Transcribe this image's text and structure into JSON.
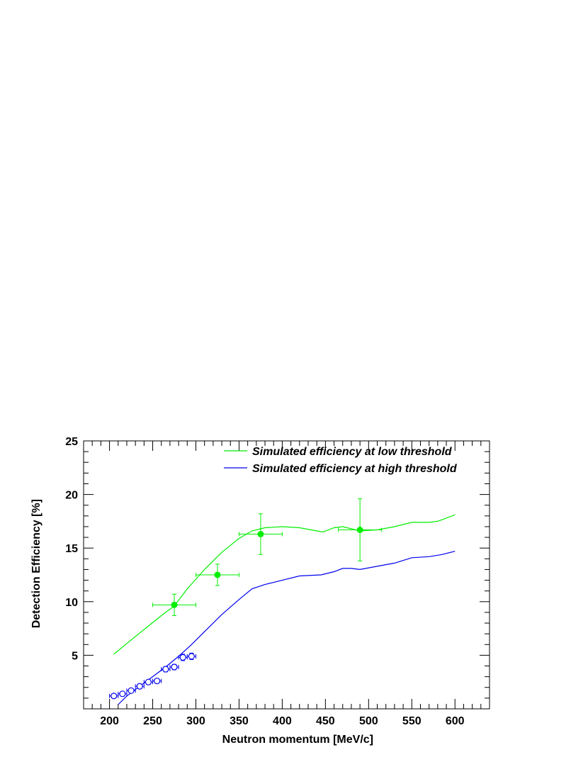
{
  "chart_data": {
    "type": "line",
    "title": "",
    "xlabel": "Neutron momentum  [MeV/c]",
    "ylabel": "Detection Efficiency  [%]",
    "xlim": [
      170,
      640
    ],
    "ylim": [
      0,
      25
    ],
    "xticks": [
      200,
      250,
      300,
      350,
      400,
      450,
      500,
      550,
      600
    ],
    "yticks": [
      5,
      10,
      15,
      20,
      25
    ],
    "legend_position": "top-right",
    "grid": false,
    "series": [
      {
        "name": "Simulated efficiency at low threshold",
        "kind": "line",
        "color": "#00ee00",
        "x": [
          205,
          220,
          240,
          260,
          275,
          290,
          310,
          330,
          350,
          365,
          380,
          400,
          420,
          440,
          447,
          460,
          470,
          480,
          490,
          510,
          530,
          550,
          560,
          570,
          580,
          590,
          600
        ],
        "y": [
          5.1,
          6.1,
          7.4,
          8.7,
          9.6,
          11.2,
          13.0,
          14.6,
          15.9,
          16.6,
          16.9,
          17.0,
          16.9,
          16.6,
          16.5,
          16.9,
          17.0,
          16.8,
          16.6,
          16.7,
          17.0,
          17.4,
          17.4,
          17.4,
          17.5,
          17.8,
          18.1
        ]
      },
      {
        "name": "Simulated efficiency at high threshold",
        "kind": "line",
        "color": "#0000ee",
        "x": [
          210,
          220,
          235,
          250,
          265,
          280,
          295,
          310,
          330,
          350,
          365,
          380,
          400,
          420,
          445,
          460,
          470,
          480,
          490,
          510,
          530,
          550,
          570,
          585,
          600
        ],
        "y": [
          0.4,
          1.2,
          2.1,
          3.0,
          3.9,
          4.9,
          6.0,
          7.2,
          8.8,
          10.2,
          11.2,
          11.6,
          12.0,
          12.4,
          12.5,
          12.8,
          13.1,
          13.1,
          13.0,
          13.3,
          13.6,
          14.1,
          14.2,
          14.4,
          14.7
        ]
      },
      {
        "name": "",
        "kind": "points-filled",
        "color": "#00ee00",
        "x": [
          275,
          325,
          375,
          490
        ],
        "y": [
          9.7,
          12.5,
          16.3,
          16.7
        ],
        "xerr": [
          25,
          25,
          25,
          25
        ],
        "yerr": [
          1.0,
          1.0,
          1.9,
          2.9
        ]
      },
      {
        "name": "",
        "kind": "points-open",
        "color": "#0000ee",
        "x": [
          205,
          215,
          225,
          235,
          245,
          255,
          265,
          275,
          285,
          295
        ],
        "y": [
          1.2,
          1.4,
          1.7,
          2.1,
          2.5,
          2.6,
          3.7,
          3.9,
          4.8,
          4.9
        ],
        "xerr": [
          5,
          5,
          5,
          5,
          5,
          5,
          5,
          5,
          5,
          5
        ],
        "yerr": [
          0.15,
          0.15,
          0.15,
          0.2,
          0.2,
          0.2,
          0.25,
          0.25,
          0.3,
          0.3
        ]
      }
    ]
  }
}
